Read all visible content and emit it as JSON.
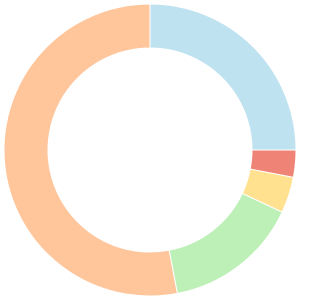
{
  "chart_data": {
    "type": "doughnut",
    "values": [
      25,
      3,
      4,
      15,
      53
    ],
    "colors": [
      "#bfe2f0",
      "#ef8476",
      "#ffe190",
      "#bdf0b7",
      "#ffc59b"
    ]
  }
}
